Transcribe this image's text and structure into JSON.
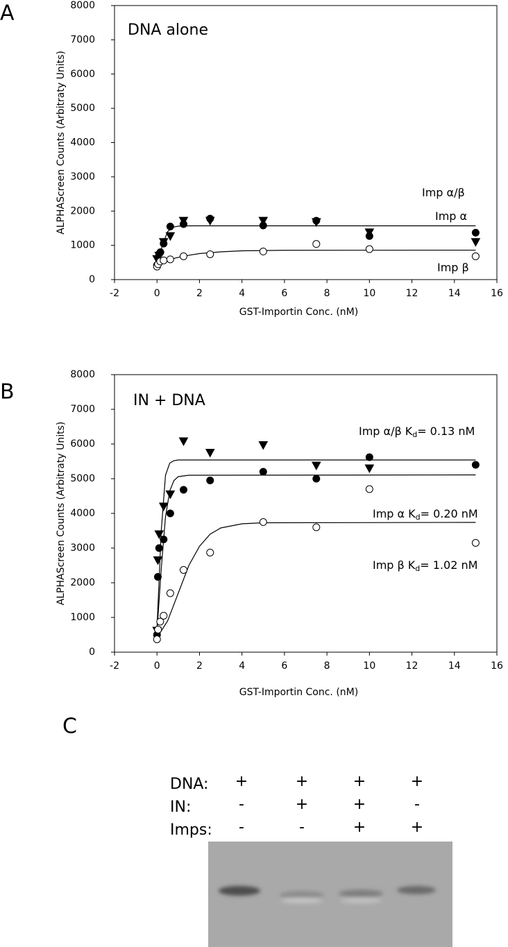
{
  "chart_data": [
    {
      "type": "scatter",
      "panel_label": "A",
      "title": "DNA alone",
      "xlabel": "GST-Importin Conc. (nM)",
      "ylabel": "ALPHAScreen Counts (Arbitraty Units)",
      "xlim": [
        -2,
        16
      ],
      "xticks": [
        -2,
        0,
        2,
        4,
        6,
        8,
        10,
        12,
        14,
        16
      ],
      "ylim": [
        0,
        8000
      ],
      "yticks": [
        0,
        1000,
        2000,
        3000,
        4000,
        5000,
        6000,
        7000,
        8000
      ],
      "series": [
        {
          "name": "Imp α/β",
          "color": "#000000",
          "marker": "triangle-down",
          "filled": true,
          "x": [
            0,
            0.1,
            0.3125,
            0.625,
            1.25,
            2.5,
            5,
            7.5,
            10,
            15
          ],
          "values": [
            600,
            700,
            1100,
            1270,
            1720,
            1720,
            1720,
            1680,
            1380,
            1100
          ]
        },
        {
          "name": "Imp α",
          "color": "#000000",
          "marker": "circle",
          "filled": true,
          "x": [
            0,
            0.1,
            0.16,
            0.3125,
            0.625,
            1.25,
            2.5,
            5,
            7.5,
            10,
            15
          ],
          "values": [
            420,
            750,
            800,
            1050,
            1550,
            1620,
            1780,
            1580,
            1720,
            1270,
            1370
          ],
          "fit": {
            "x": [
              0,
              0.25,
              0.5,
              0.75,
              1,
              1.5,
              2,
              3,
              15
            ],
            "values": [
              400,
              1000,
              1400,
              1530,
              1560,
              1570,
              1570,
              1570,
              1570
            ]
          }
        },
        {
          "name": "Imp β",
          "color": "#000000",
          "marker": "circle",
          "filled": false,
          "x": [
            0,
            0.05,
            0.15,
            0.3125,
            0.625,
            1.25,
            2.5,
            5,
            7.5,
            10,
            15
          ],
          "values": [
            380,
            450,
            530,
            560,
            590,
            680,
            740,
            820,
            1040,
            890,
            680
          ],
          "fit": {
            "x": [
              0,
              0.25,
              0.5,
              1,
              1.5,
              2,
              3,
              4,
              6,
              15
            ],
            "values": [
              430,
              510,
              570,
              650,
              710,
              760,
              810,
              840,
              855,
              860
            ]
          }
        }
      ]
    },
    {
      "type": "scatter",
      "panel_label": "B",
      "title": "IN + DNA",
      "xlabel": "GST-Importin Conc. (nM)",
      "ylabel": "ALPHAScreen Counts (Arbitraty Units)",
      "xlim": [
        -2,
        16
      ],
      "xticks": [
        -2,
        0,
        2,
        4,
        6,
        8,
        10,
        12,
        14,
        16
      ],
      "ylim": [
        0,
        8000
      ],
      "yticks": [
        0,
        1000,
        2000,
        3000,
        4000,
        5000,
        6000,
        7000,
        8000
      ],
      "series": [
        {
          "name": "Imp α/β",
          "kd_label": [
            "K",
            "d",
            "= 0.13 nM"
          ],
          "color": "#000000",
          "marker": "triangle-down",
          "filled": true,
          "x": [
            0,
            0.04,
            0.1,
            0.3125,
            0.625,
            1.25,
            2.5,
            5,
            7.5,
            10
          ],
          "values": [
            620,
            2650,
            3400,
            4200,
            4550,
            6080,
            5750,
            5970,
            5380,
            5300
          ],
          "fit": {
            "x": [
              0,
              0.2,
              0.4,
              0.6,
              0.8,
              1,
              15
            ],
            "values": [
              700,
              3500,
              5100,
              5450,
              5520,
              5540,
              5540
            ]
          }
        },
        {
          "name": "Imp α",
          "kd_label": [
            "K",
            "d",
            "= 0.20 nM"
          ],
          "color": "#000000",
          "marker": "circle",
          "filled": true,
          "x": [
            0,
            0.04,
            0.1,
            0.3125,
            0.625,
            1.25,
            2.5,
            5,
            7.5,
            10,
            15
          ],
          "values": [
            500,
            2170,
            3000,
            3250,
            4000,
            4680,
            4950,
            5200,
            5000,
            5620,
            5400
          ],
          "fit": {
            "x": [
              0,
              0.2,
              0.4,
              0.6,
              0.8,
              1,
              1.5,
              15
            ],
            "values": [
              600,
              2400,
              3900,
              4650,
              4950,
              5060,
              5100,
              5110
            ]
          }
        },
        {
          "name": "Imp β",
          "kd_label": [
            "K",
            "d",
            "= 1.02 nM"
          ],
          "color": "#000000",
          "marker": "circle",
          "filled": false,
          "x": [
            0,
            0.05,
            0.15,
            0.3125,
            0.625,
            1.25,
            2.5,
            5,
            7.5,
            10,
            15
          ],
          "values": [
            370,
            650,
            880,
            1050,
            1700,
            2370,
            2870,
            3750,
            3600,
            4700,
            3150
          ],
          "fit": {
            "x": [
              0,
              0.5,
              1,
              1.5,
              2,
              2.5,
              3,
              4,
              5,
              15
            ],
            "values": [
              420,
              900,
              1700,
              2500,
              3050,
              3400,
              3580,
              3700,
              3730,
              3740
            ]
          }
        }
      ]
    }
  ],
  "panel_c": {
    "label": "C",
    "rows": [
      {
        "label": "DNA:",
        "lanes": [
          "+",
          "+",
          "+",
          "+"
        ]
      },
      {
        "label": "IN:",
        "lanes": [
          "-",
          "+",
          "+",
          "-"
        ]
      },
      {
        "label": "Imps:",
        "lanes": [
          "-",
          "-",
          "+",
          "+"
        ]
      }
    ]
  }
}
